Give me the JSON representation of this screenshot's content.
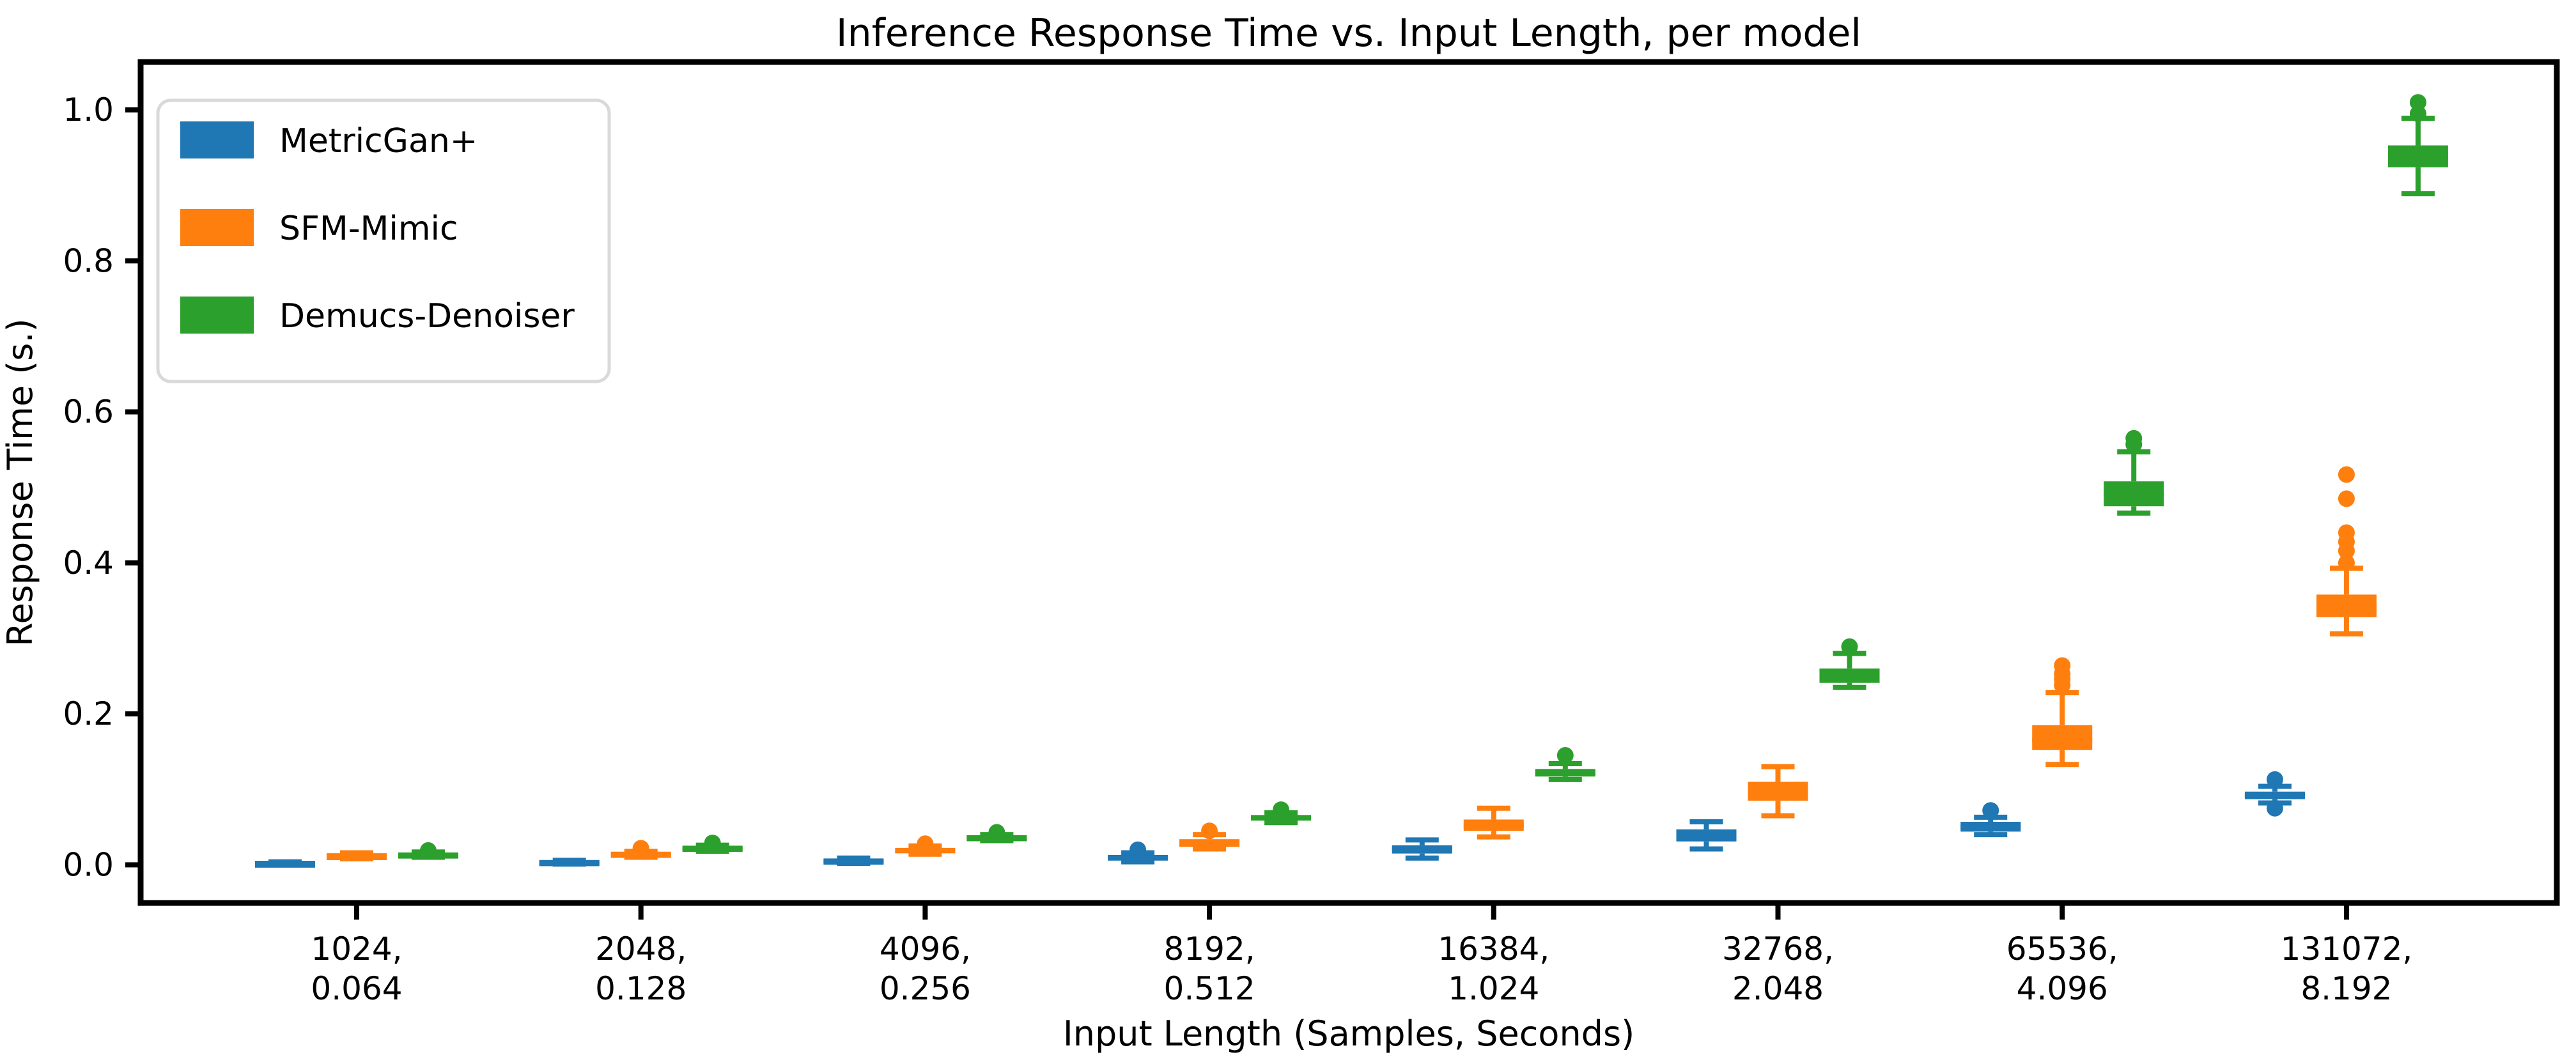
{
  "figure": {
    "background": "#ffffff",
    "text_color": "#000000"
  },
  "chart_data": {
    "type": "box",
    "title": "Inference Response Time vs. Input Length, per model",
    "xlabel": "Input Length (Samples, Seconds)",
    "ylabel": "Response Time (s.)",
    "ylim": [
      -0.0505,
      1.0635
    ],
    "grid": false,
    "legend_position": "upper-left",
    "legend_border_color": "#d9d9d9",
    "yticks": [
      {
        "value": 0.0,
        "label": "0.0"
      },
      {
        "value": 0.2,
        "label": "0.2"
      },
      {
        "value": 0.4,
        "label": "0.4"
      },
      {
        "value": 0.6,
        "label": "0.6"
      },
      {
        "value": 0.8,
        "label": "0.8"
      },
      {
        "value": 1.0,
        "label": "1.0"
      }
    ],
    "categories": [
      {
        "line1": "1024,",
        "line2": "0.064",
        "samples": 1024,
        "seconds": 0.064
      },
      {
        "line1": "2048,",
        "line2": "0.128",
        "samples": 2048,
        "seconds": 0.128
      },
      {
        "line1": "4096,",
        "line2": "0.256",
        "samples": 4096,
        "seconds": 0.256
      },
      {
        "line1": "8192,",
        "line2": "0.512",
        "samples": 8192,
        "seconds": 0.512
      },
      {
        "line1": "16384,",
        "line2": "1.024",
        "samples": 16384,
        "seconds": 1.024
      },
      {
        "line1": "32768,",
        "line2": "2.048",
        "samples": 32768,
        "seconds": 2.048
      },
      {
        "line1": "65536,",
        "line2": "4.096",
        "samples": 65536,
        "sederal": 4.096,
        "seconds": 4.096
      },
      {
        "line1": "131072,",
        "line2": "8.192",
        "samples": 131072,
        "seconds": 8.192
      }
    ],
    "series": [
      {
        "name": "MetricGan+",
        "color": "#1f77b4",
        "boxes": [
          {
            "lo": 0.0,
            "q1": 0.001,
            "med": 0.002,
            "q3": 0.003,
            "hi": 0.004,
            "out": []
          },
          {
            "lo": 0.001,
            "q1": 0.002,
            "med": 0.003,
            "q3": 0.005,
            "hi": 0.006,
            "out": []
          },
          {
            "lo": 0.002,
            "q1": 0.004,
            "med": 0.005,
            "q3": 0.007,
            "hi": 0.009,
            "out": []
          },
          {
            "lo": 0.004,
            "q1": 0.006,
            "med": 0.009,
            "q3": 0.013,
            "hi": 0.016,
            "out": [
              0.02
            ]
          },
          {
            "lo": 0.009,
            "q1": 0.015,
            "med": 0.021,
            "q3": 0.026,
            "hi": 0.033,
            "out": []
          },
          {
            "lo": 0.021,
            "q1": 0.031,
            "med": 0.039,
            "q3": 0.047,
            "hi": 0.057,
            "out": []
          },
          {
            "lo": 0.04,
            "q1": 0.044,
            "med": 0.05,
            "q3": 0.057,
            "hi": 0.063,
            "out": [
              0.072
            ]
          },
          {
            "lo": 0.082,
            "q1": 0.087,
            "med": 0.092,
            "q3": 0.097,
            "hi": 0.104,
            "out": [
              0.075,
              0.113
            ]
          }
        ]
      },
      {
        "name": "SFM-Mimic",
        "color": "#ff7f0e",
        "boxes": [
          {
            "lo": 0.008,
            "q1": 0.01,
            "med": 0.012,
            "q3": 0.013,
            "hi": 0.016,
            "out": []
          },
          {
            "lo": 0.01,
            "q1": 0.012,
            "med": 0.014,
            "q3": 0.016,
            "hi": 0.018,
            "out": [
              0.022
            ]
          },
          {
            "lo": 0.014,
            "q1": 0.017,
            "med": 0.019,
            "q3": 0.022,
            "hi": 0.025,
            "out": [
              0.028
            ]
          },
          {
            "lo": 0.021,
            "q1": 0.024,
            "med": 0.029,
            "q3": 0.034,
            "hi": 0.04,
            "out": [
              0.045
            ]
          },
          {
            "lo": 0.037,
            "q1": 0.045,
            "med": 0.052,
            "q3": 0.06,
            "hi": 0.075,
            "out": []
          },
          {
            "lo": 0.065,
            "q1": 0.085,
            "med": 0.097,
            "q3": 0.11,
            "hi": 0.13,
            "out": []
          },
          {
            "lo": 0.133,
            "q1": 0.152,
            "med": 0.166,
            "q3": 0.185,
            "hi": 0.228,
            "out": [
              0.238,
              0.246,
              0.253,
              0.264
            ]
          },
          {
            "lo": 0.306,
            "q1": 0.328,
            "med": 0.342,
            "q3": 0.358,
            "hi": 0.393,
            "out": [
              0.4,
              0.416,
              0.428,
              0.44,
              0.485,
              0.517
            ]
          }
        ]
      },
      {
        "name": "Demucs-Denoiser",
        "color": "#2ca02c",
        "boxes": [
          {
            "lo": 0.01,
            "q1": 0.012,
            "med": 0.013,
            "q3": 0.015,
            "hi": 0.017,
            "out": [
              0.019
            ]
          },
          {
            "lo": 0.018,
            "q1": 0.02,
            "med": 0.022,
            "q3": 0.024,
            "hi": 0.026,
            "out": [
              0.029
            ]
          },
          {
            "lo": 0.032,
            "q1": 0.034,
            "med": 0.036,
            "q3": 0.038,
            "hi": 0.04,
            "out": [
              0.043
            ]
          },
          {
            "lo": 0.056,
            "q1": 0.059,
            "med": 0.062,
            "q3": 0.066,
            "hi": 0.069,
            "out": [
              0.073
            ]
          },
          {
            "lo": 0.113,
            "q1": 0.117,
            "med": 0.122,
            "q3": 0.127,
            "hi": 0.134,
            "out": [
              0.145
            ]
          },
          {
            "lo": 0.235,
            "q1": 0.241,
            "med": 0.25,
            "q3": 0.26,
            "hi": 0.28,
            "out": [
              0.289
            ]
          },
          {
            "lo": 0.466,
            "q1": 0.475,
            "med": 0.492,
            "q3": 0.508,
            "hi": 0.547,
            "out": [
              0.557,
              0.565
            ]
          },
          {
            "lo": 0.889,
            "q1": 0.924,
            "med": 0.938,
            "q3": 0.953,
            "hi": 0.989,
            "out": [
              0.995,
              1.01
            ]
          }
        ]
      }
    ]
  }
}
